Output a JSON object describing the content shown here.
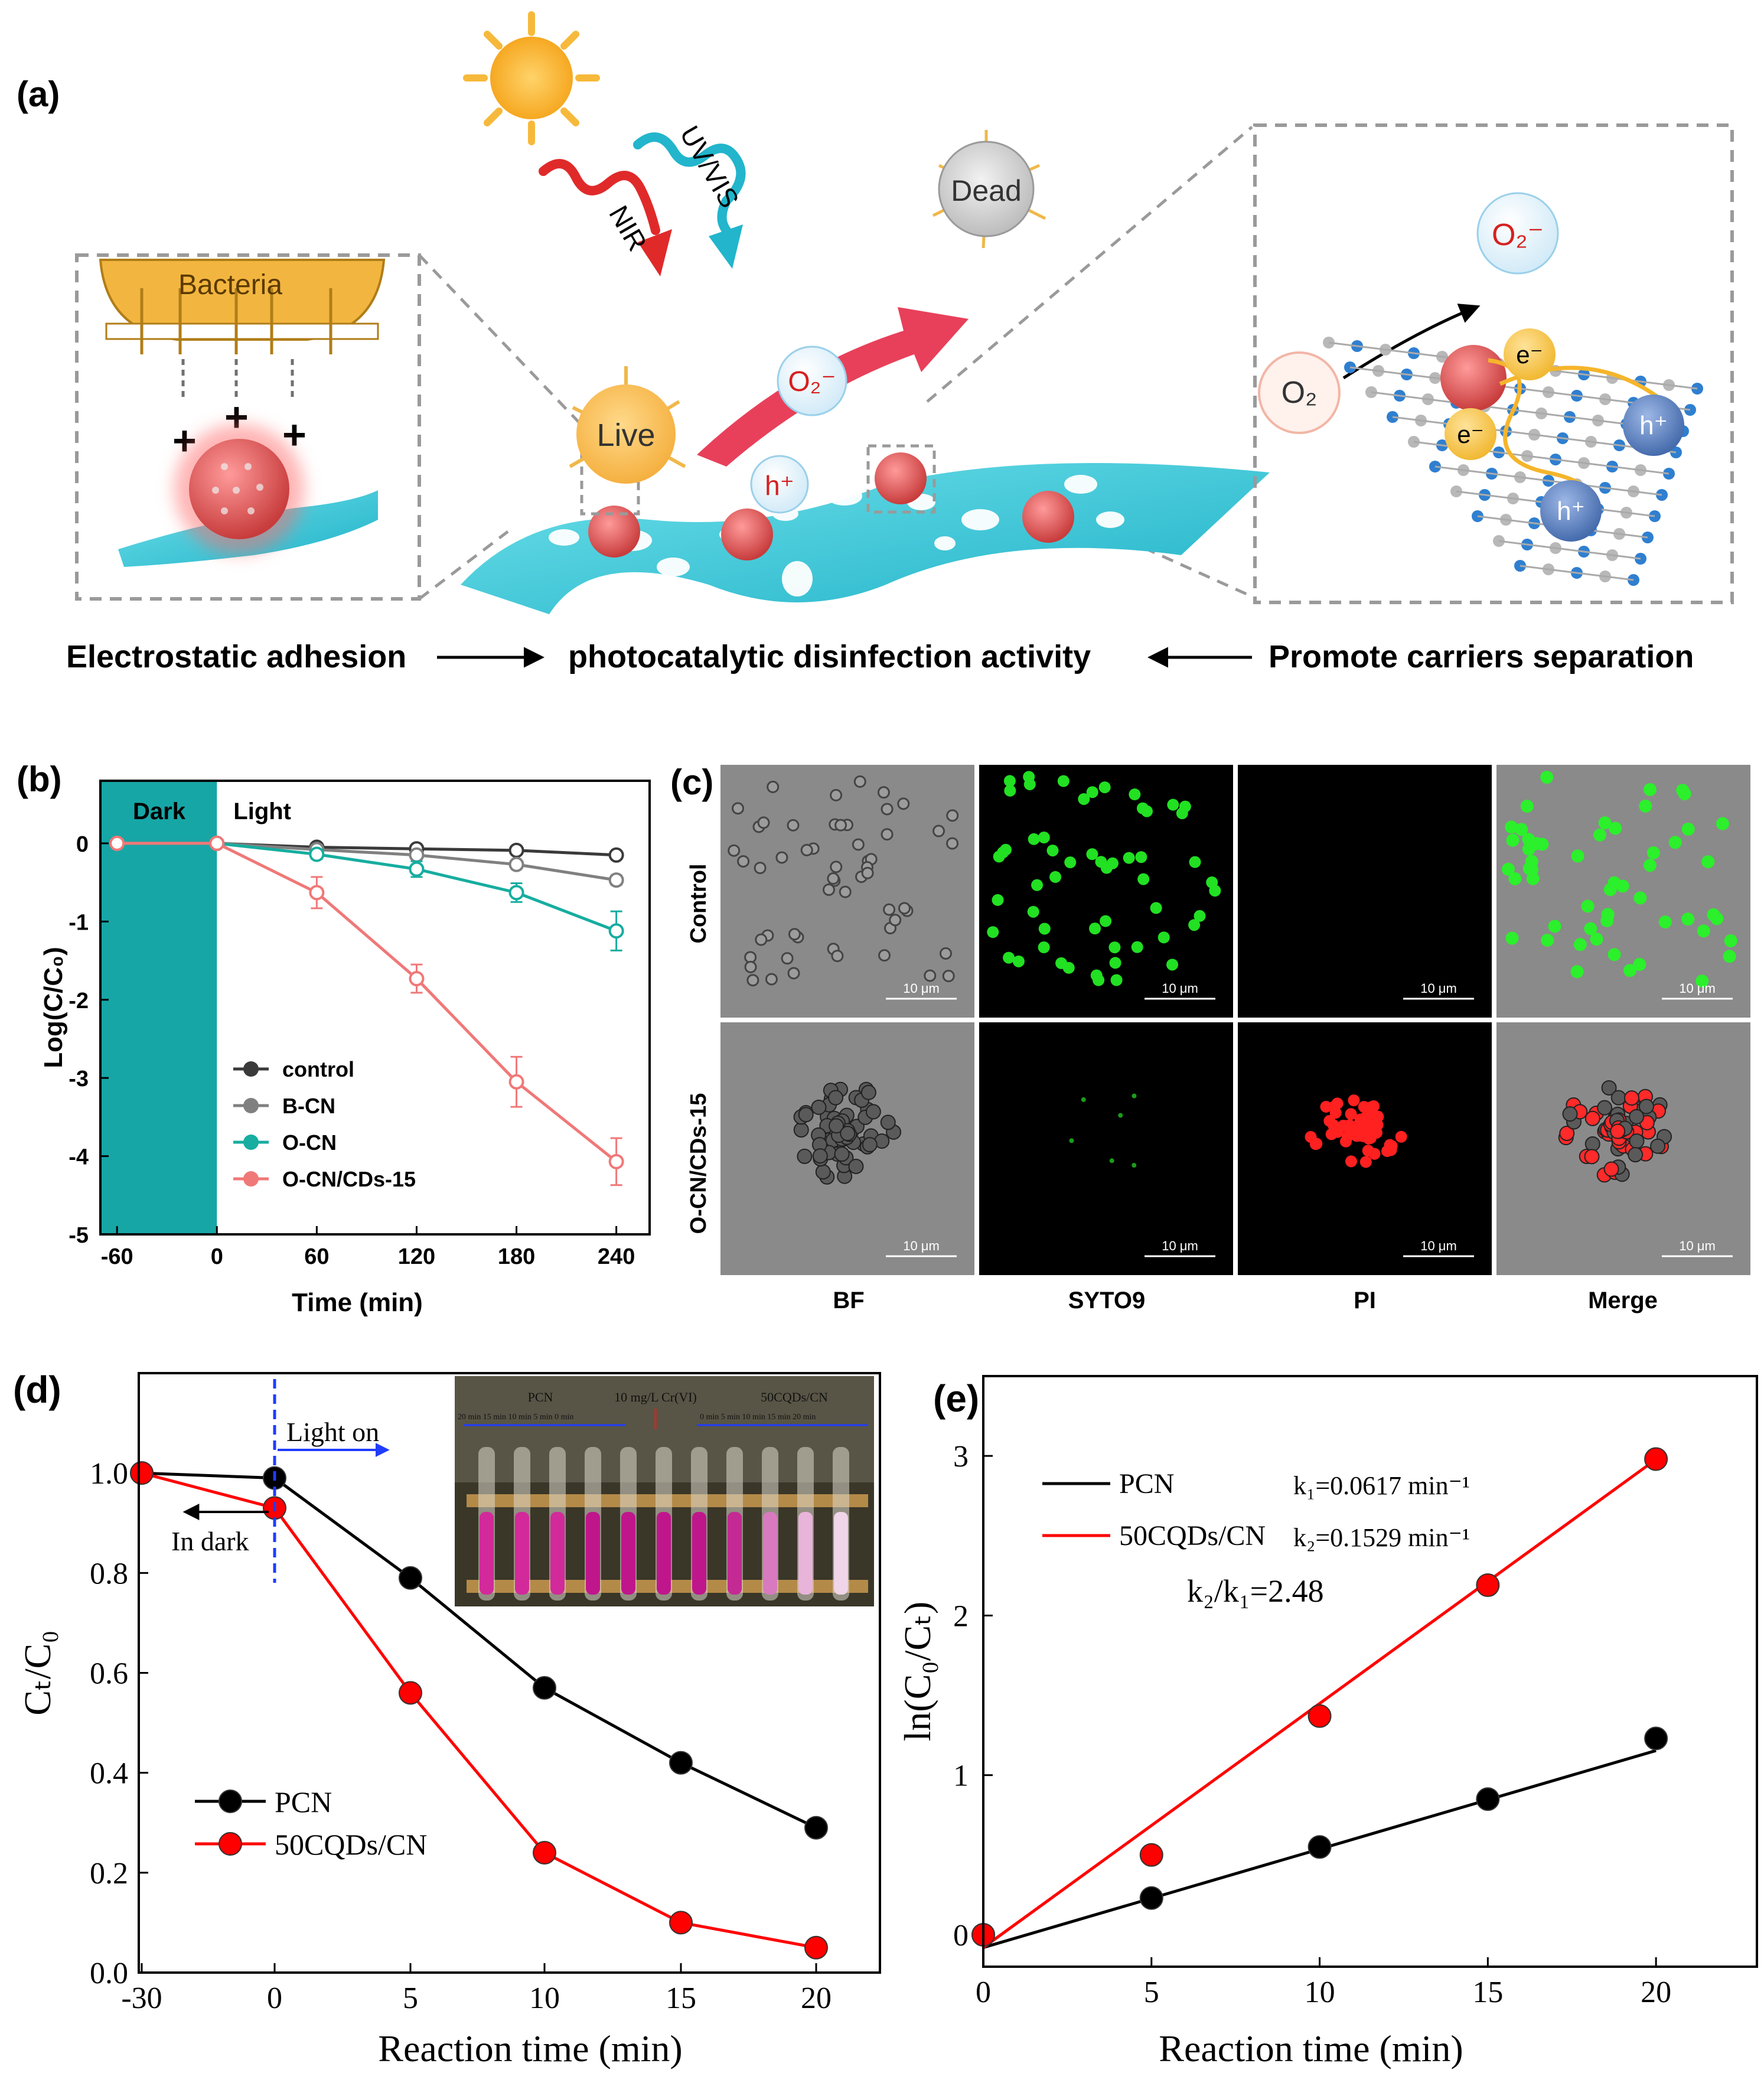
{
  "panel_a": {
    "panel_label": "(a)",
    "labels": {
      "bacteria": "Bacteria",
      "dead": "Dead",
      "live": "Live",
      "nir": "NIR",
      "uvvis": "UV/VIS",
      "o2_radical": "O₂⁻",
      "h_plus": "h⁺",
      "e_minus": "e⁻",
      "o2": "O₂"
    },
    "captions": {
      "left": "Electrostatic adhesion",
      "middle": "photocatalytic disinfection activity",
      "right": "Promote carriers separation"
    },
    "colors": {
      "sheet": "#3cc8d8",
      "nanoparticle": "#e05858",
      "sun": "#f6b93b",
      "nir": "#e02a2a",
      "uvvis": "#22b5cc",
      "arrow": "#e8405a",
      "hole": "#5478b8",
      "electron": "#f5c242"
    }
  },
  "panel_b": {
    "panel_label": "(b)",
    "dark_label": "Dark",
    "light_label": "Light",
    "xlabel": "Time (min)",
    "ylabel": "Log(C/C₀)",
    "colors": {
      "dark_region": "#17a6a6"
    }
  },
  "panel_c": {
    "panel_label": "(c)",
    "row_labels": [
      "Control",
      "O-CN/CDs-15"
    ],
    "col_labels": [
      "BF",
      "SYTO9",
      "PI",
      "Merge"
    ],
    "scale_bar": "10 μm"
  },
  "panel_d": {
    "panel_label": "(d)",
    "xlabel": "Reaction time (min)",
    "ylabel": "Cₜ/C₀",
    "light_on": "Light  on",
    "in_dark": "In dark",
    "inset": {
      "left_group": "PCN",
      "center_label": "10 mg/L Cr(VI)",
      "right_group": "50CQDs/CN",
      "left_times": "20 min 15 min  10 min  5 min  0 min",
      "right_times": "0 min  5 min 10 min  15 min  20 min"
    }
  },
  "panel_e": {
    "panel_label": "(e)",
    "xlabel": "Reaction time (min)",
    "ylabel": "ln(C₀/Cₜ)",
    "annotations": {
      "k1": "k₁=0.0617 min⁻¹",
      "k2": "k₂=0.1529 min⁻¹",
      "ratio": "k₂/k₁=2.48"
    }
  },
  "chart_data": [
    {
      "type": "line",
      "panel": "b",
      "x": [
        -60,
        0,
        60,
        120,
        180,
        240
      ],
      "xticks": [
        "-60",
        "0",
        "60",
        "120",
        "180",
        "240"
      ],
      "xlim": [
        -70,
        260
      ],
      "ylim": [
        -5,
        0.8
      ],
      "yticks": [
        0,
        -1,
        -2,
        -3,
        -4,
        -5
      ],
      "xlabel": "Time (min)",
      "ylabel": "Log(C/C₀)",
      "legend_position": "lower-left",
      "series": [
        {
          "name": "control",
          "color": "#3a3a3a",
          "values": [
            0,
            0,
            -0.05,
            -0.07,
            -0.09,
            -0.15
          ],
          "errors": [
            0.05,
            0.03,
            0.04,
            0.04,
            0.04,
            0.05
          ]
        },
        {
          "name": "B-CN",
          "color": "#808080",
          "values": [
            0,
            0,
            -0.08,
            -0.15,
            -0.27,
            -0.47
          ],
          "errors": [
            0.05,
            0.03,
            0.06,
            0.05,
            0.05,
            0.06
          ]
        },
        {
          "name": "O-CN",
          "color": "#17ada0",
          "values": [
            0,
            0,
            -0.14,
            -0.33,
            -0.63,
            -1.12
          ],
          "errors": [
            0.05,
            0.03,
            0.06,
            0.1,
            0.12,
            0.25
          ]
        },
        {
          "name": "O-CN/CDs-15",
          "color": "#f07878",
          "values": [
            0,
            0,
            -0.63,
            -1.73,
            -3.05,
            -4.07
          ],
          "errors": [
            0.05,
            0.03,
            0.2,
            0.18,
            0.32,
            0.3
          ]
        }
      ]
    },
    {
      "type": "line",
      "panel": "d",
      "x_categories": [
        "-30",
        "0",
        "5",
        "10",
        "15",
        "20"
      ],
      "ylim": [
        0,
        1.2
      ],
      "yticks": [
        "0.0",
        "0.2",
        "0.4",
        "0.6",
        "0.8",
        "1.0"
      ],
      "xlabel": "Reaction time (min)",
      "ylabel": "Cₜ/C₀",
      "legend_position": "lower-left",
      "series": [
        {
          "name": "PCN",
          "color": "#000000",
          "values": [
            1.0,
            0.99,
            0.79,
            0.57,
            0.42,
            0.29
          ]
        },
        {
          "name": "50CQDs/CN",
          "color": "#ff0000",
          "values": [
            1.0,
            0.93,
            0.56,
            0.24,
            0.1,
            0.05
          ]
        }
      ]
    },
    {
      "type": "scatter",
      "panel": "e",
      "x": [
        0,
        5,
        10,
        15,
        20
      ],
      "xlim": [
        0,
        23
      ],
      "ylim": [
        -0.2,
        3.5
      ],
      "xticks": [
        0,
        5,
        10,
        15,
        20
      ],
      "yticks": [
        0,
        1,
        2,
        3
      ],
      "xlabel": "Reaction time (min)",
      "ylabel": "ln(C₀/Cₜ)",
      "legend_position": "top-left",
      "series": [
        {
          "name": "PCN",
          "color": "#000000",
          "values": [
            0,
            0.23,
            0.55,
            0.85,
            1.23
          ],
          "fit": {
            "slope": 0.0617,
            "intercept": -0.08
          }
        },
        {
          "name": "50CQDs/CN",
          "color": "#ff0000",
          "values": [
            0,
            0.5,
            1.37,
            2.19,
            2.98
          ],
          "fit": {
            "slope": 0.1529,
            "intercept": -0.08
          }
        }
      ]
    }
  ]
}
